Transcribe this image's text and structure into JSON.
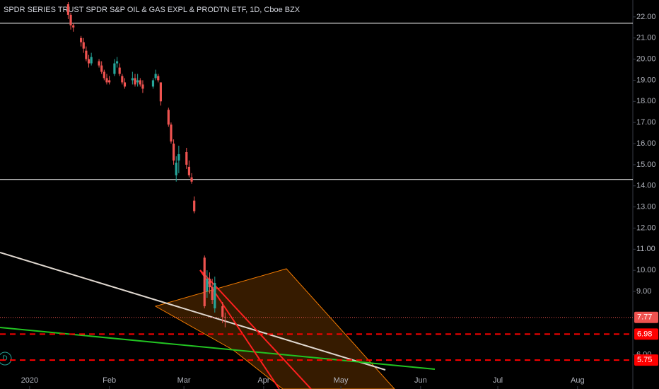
{
  "chart_data": {
    "type": "candlestick",
    "title": "SPDR SERIES TRUST SPDR S&P OIL & GAS EXPL & PRODTN ETF, 1D, Cboe BZX",
    "x": [
      15,
      16,
      17,
      20,
      21,
      22,
      23,
      24,
      27,
      28,
      29,
      30,
      31,
      33,
      34,
      35,
      36,
      37,
      40,
      41,
      42,
      43,
      44,
      48,
      49,
      50,
      51,
      54,
      55,
      56,
      57,
      58,
      61,
      62,
      63,
      64,
      68,
      69,
      70,
      71,
      72,
      75,
      76
    ],
    "open": [
      22.6,
      22.1,
      21.6,
      21.0,
      20.8,
      20.4,
      20.0,
      19.8,
      19.9,
      19.7,
      19.4,
      19.1,
      19.0,
      19.3,
      19.8,
      19.6,
      19.2,
      18.9,
      19.0,
      19.1,
      18.9,
      19.0,
      18.8,
      18.7,
      19.1,
      19.2,
      18.9,
      17.6,
      16.9,
      16.0,
      14.5,
      15.2,
      15.6,
      14.9,
      14.4,
      13.3,
      10.6,
      9.0,
      9.6,
      9.2,
      8.2,
      8.3,
      7.8
    ],
    "high": [
      22.7,
      22.2,
      21.7,
      21.1,
      21.0,
      20.6,
      20.2,
      20.3,
      20.0,
      19.9,
      19.5,
      19.3,
      19.2,
      20.0,
      20.1,
      19.8,
      19.3,
      19.1,
      19.4,
      19.3,
      19.3,
      19.1,
      19.0,
      19.1,
      19.5,
      19.3,
      18.9,
      17.7,
      17.0,
      16.2,
      15.4,
      15.9,
      15.8,
      15.2,
      14.6,
      13.5,
      10.7,
      10.0,
      9.9,
      9.6,
      9.7,
      8.5,
      8.0
    ],
    "low": [
      21.9,
      21.4,
      21.3,
      20.6,
      20.3,
      19.9,
      19.6,
      19.7,
      19.6,
      19.3,
      19.0,
      18.8,
      18.8,
      19.2,
      19.6,
      19.2,
      18.8,
      18.6,
      18.8,
      18.7,
      18.7,
      18.7,
      18.4,
      18.6,
      19.0,
      18.9,
      17.8,
      16.8,
      16.0,
      15.0,
      14.2,
      14.6,
      14.8,
      14.4,
      14.1,
      12.7,
      8.2,
      8.7,
      8.9,
      8.4,
      8.0,
      7.5,
      7.3
    ],
    "close": [
      22.1,
      21.6,
      21.5,
      20.8,
      20.5,
      20.0,
      19.8,
      20.1,
      19.7,
      19.4,
      19.1,
      18.9,
      18.9,
      19.8,
      19.9,
      19.3,
      18.9,
      18.7,
      19.1,
      18.8,
      19.0,
      18.8,
      18.6,
      19.0,
      19.3,
      19.0,
      18.0,
      16.9,
      16.1,
      15.2,
      15.1,
      15.5,
      15.0,
      14.5,
      14.2,
      12.8,
      8.3,
      9.6,
      9.2,
      8.6,
      9.4,
      7.8,
      7.77
    ],
    "up_color": "#26a69a",
    "down_color": "#ef5350",
    "xlim": [
      -11.5,
      234.5
    ],
    "xticks": [
      {
        "value": 0,
        "label": "2020"
      },
      {
        "value": 31,
        "label": "Feb"
      },
      {
        "value": 60,
        "label": "Mar"
      },
      {
        "value": 91,
        "label": "Apr"
      },
      {
        "value": 121,
        "label": "May"
      },
      {
        "value": 152,
        "label": "Jun"
      },
      {
        "value": 182,
        "label": "Jul"
      },
      {
        "value": 213,
        "label": "Aug"
      }
    ],
    "ylim": [
      4.38,
      22.8
    ],
    "yticks": [
      {
        "value": 6,
        "label": "6.00"
      },
      {
        "value": 9,
        "label": "9.00"
      },
      {
        "value": 10,
        "label": "10.00"
      },
      {
        "value": 11,
        "label": "11.00"
      },
      {
        "value": 12,
        "label": "12.00"
      },
      {
        "value": 13,
        "label": "13.00"
      },
      {
        "value": 14,
        "label": "14.00"
      },
      {
        "value": 15,
        "label": "15.00"
      },
      {
        "value": 16,
        "label": "16.00"
      },
      {
        "value": 17,
        "label": "17.00"
      },
      {
        "value": 18,
        "label": "18.00"
      },
      {
        "value": 19,
        "label": "19.00"
      },
      {
        "value": 20,
        "label": "20.00"
      },
      {
        "value": 21,
        "label": "21.00"
      },
      {
        "value": 22,
        "label": "22.00"
      }
    ],
    "hlines": [
      21.7,
      14.3
    ],
    "hline_color": "#ffffff",
    "levels": [
      {
        "value": 7.77,
        "color": "#ef5350",
        "dash": "1 2",
        "width": 1
      },
      {
        "value": 6.98,
        "color": "#ff0000",
        "dash": "8 6",
        "width": 2
      },
      {
        "value": 5.75,
        "color": "#ff0000",
        "dash": "8 6",
        "width": 2
      }
    ]
  },
  "badge": "D"
}
